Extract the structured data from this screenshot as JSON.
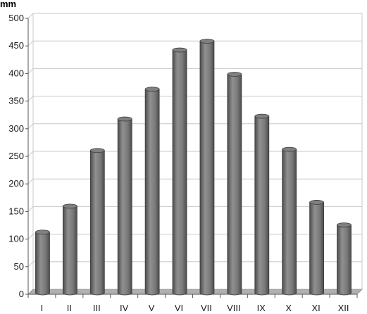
{
  "chart_data": {
    "type": "bar",
    "title": "",
    "xlabel": "",
    "ylabel": "mm",
    "categories": [
      "I",
      "II",
      "III",
      "IV",
      "V",
      "VI",
      "VII",
      "VIII",
      "IX",
      "X",
      "XI",
      "XII"
    ],
    "values": [
      110,
      157,
      258,
      315,
      369,
      440,
      456,
      396,
      320,
      260,
      164,
      123
    ],
    "ylim": [
      0,
      500
    ],
    "yticks": [
      0,
      50,
      100,
      150,
      200,
      250,
      300,
      350,
      400,
      450,
      500
    ],
    "grid": true,
    "legend": "none",
    "bar_color": "#7a7a7a",
    "floor_color": "#b0b0b0"
  }
}
